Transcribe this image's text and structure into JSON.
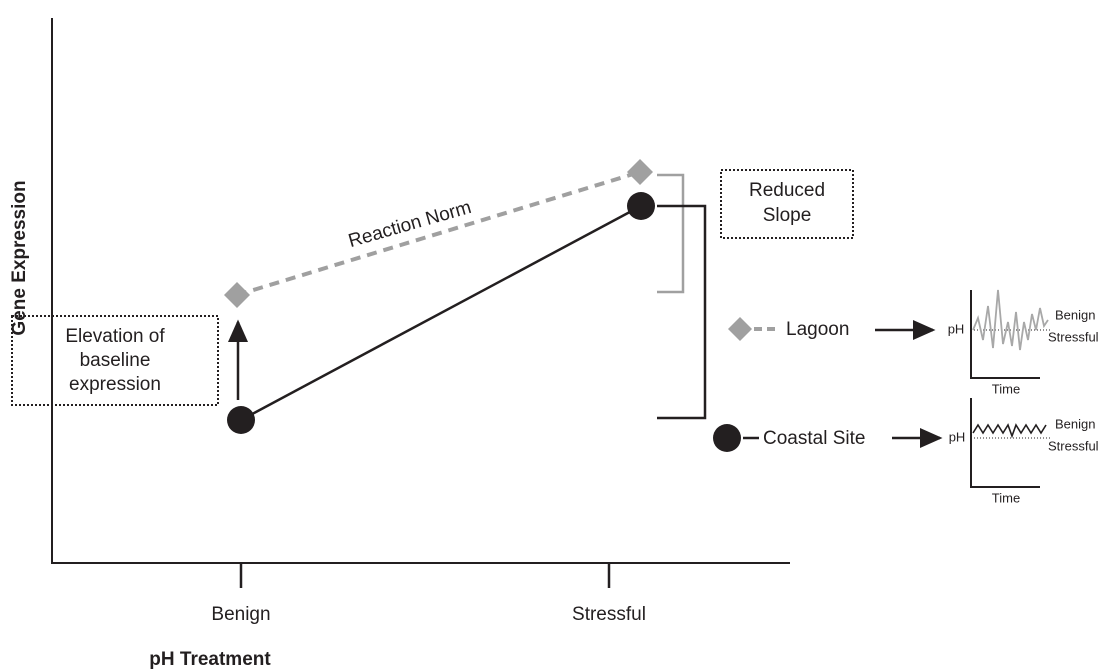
{
  "axes": {
    "y_label": "Gene Expression",
    "x_label": "pH Treatment",
    "x_ticks": [
      "Benign",
      "Stressful"
    ]
  },
  "annotations": {
    "reaction_norm": "Reaction Norm",
    "elevation": [
      "Elevation of",
      "baseline",
      "expression"
    ],
    "reduced_slope": [
      "Reduced",
      "Slope"
    ]
  },
  "legend": {
    "lagoon": "Lagoon",
    "coastal": "Coastal Site"
  },
  "insets": [
    {
      "y_label": "pH",
      "x_label": "Time",
      "upper": "Benign",
      "lower": "Stressful"
    },
    {
      "y_label": "pH",
      "x_label": "Time",
      "upper": "Benign",
      "lower": "Stressful"
    }
  ]
}
